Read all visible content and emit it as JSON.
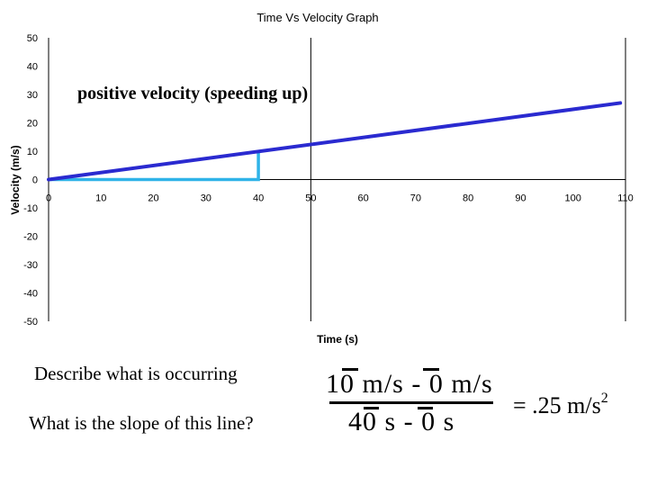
{
  "chart_data": {
    "type": "line",
    "title": "Time Vs Velocity Graph",
    "xlabel": "Time (s)",
    "ylabel": "Velocity (m/s)",
    "xlim": [
      0,
      110
    ],
    "ylim": [
      -50,
      50
    ],
    "x_ticks": [
      0,
      10,
      20,
      30,
      40,
      50,
      60,
      70,
      80,
      90,
      100,
      110
    ],
    "y_ticks": [
      50,
      40,
      30,
      20,
      10,
      0,
      -10,
      -20,
      -30,
      -40,
      -50
    ],
    "grid": true,
    "series": [
      {
        "name": "velocity",
        "x": [
          0,
          109
        ],
        "y": [
          0,
          27
        ],
        "color": "#2a2ad0"
      }
    ],
    "slope_triangle": {
      "x": [
        0,
        40,
        40
      ],
      "y": [
        0,
        0,
        10
      ],
      "color": "#2fb3e8"
    },
    "annotation": "positive velocity (speeding up)"
  },
  "questions": {
    "describe": "Describe what is occurring",
    "slope": "What is the slope of this line?"
  },
  "calculation": {
    "numerator": "10 m/s - 0 m/s",
    "denominator": "40 s - 0 s",
    "result": "= .25 m/s",
    "result_exponent": "2"
  }
}
